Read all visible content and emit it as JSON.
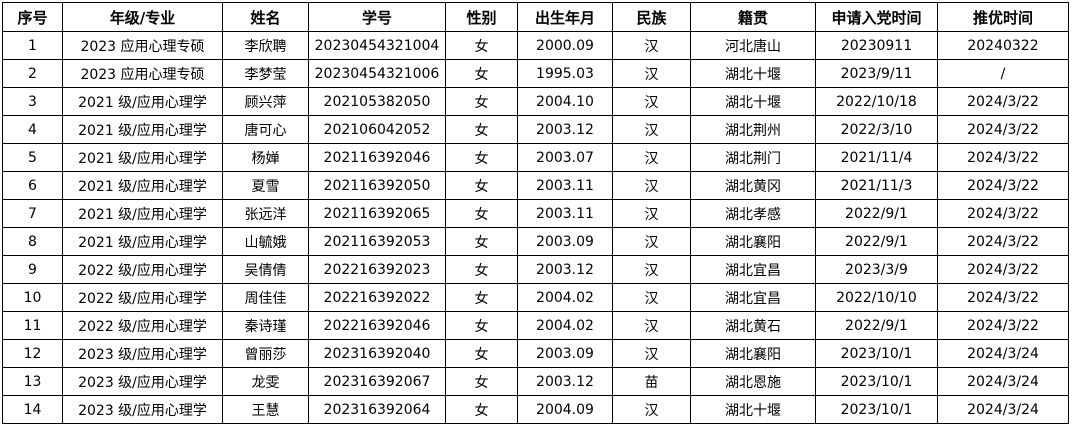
{
  "headers": [
    "序号",
    "年级/专业",
    "姓名",
    "学号",
    "性别",
    "出生年月",
    "民族",
    "籍贯",
    "申请入党时间",
    "推优时间"
  ],
  "rows": [
    [
      "1",
      "2023 应用心理专硕",
      "李欣聘",
      "20230454321004",
      "女",
      "2000.09",
      "汉",
      "河北唐山",
      "20230911",
      "20240322"
    ],
    [
      "2",
      "2023 应用心理专硕",
      "李梦莹",
      "20230454321006",
      "女",
      "1995.03",
      "汉",
      "湖北十堰",
      "2023/9/11",
      "/"
    ],
    [
      "3",
      "2021 级/应用心理学",
      "顾兴萍",
      "202105382050",
      "女",
      "2004.10",
      "汉",
      "湖北十堰",
      "2022/10/18",
      "2024/3/22"
    ],
    [
      "4",
      "2021 级/应用心理学",
      "唐可心",
      "202106042052",
      "女",
      "2003.12",
      "汉",
      "湖北荆州",
      "2022/3/10",
      "2024/3/22"
    ],
    [
      "5",
      "2021 级/应用心理学",
      "杨婵",
      "202116392046",
      "女",
      "2003.07",
      "汉",
      "湖北荆门",
      "2021/11/4",
      "2024/3/22"
    ],
    [
      "6",
      "2021 级/应用心理学",
      "夏雪",
      "202116392050",
      "女",
      "2003.11",
      "汉",
      "湖北黄冈",
      "2021/11/3",
      "2024/3/22"
    ],
    [
      "7",
      "2021 级/应用心理学",
      "张远洋",
      "202116392065",
      "女",
      "2003.11",
      "汉",
      "湖北孝感",
      "2022/9/1",
      "2024/3/22"
    ],
    [
      "8",
      "2021 级/应用心理学",
      "山毓娥",
      "202116392053",
      "女",
      "2003.09",
      "汉",
      "湖北襄阳",
      "2022/9/1",
      "2024/3/22"
    ],
    [
      "9",
      "2022 级/应用心理学",
      "吴倩倩",
      "202216392023",
      "女",
      "2003.12",
      "汉",
      "湖北宜昌",
      "2023/3/9",
      "2024/3/22"
    ],
    [
      "10",
      "2022 级/应用心理学",
      "周佳佳",
      "202216392022",
      "女",
      "2004.02",
      "汉",
      "湖北宜昌",
      "2022/10/10",
      "2024/3/22"
    ],
    [
      "11",
      "2022 级/应用心理学",
      "秦诗瑾",
      "202216392046",
      "女",
      "2004.02",
      "汉",
      "湖北黄石",
      "2022/9/1",
      "2024/3/22"
    ],
    [
      "12",
      "2023 级/应用心理学",
      "曾丽莎",
      "202316392040",
      "女",
      "2003.09",
      "汉",
      "湖北襄阳",
      "2023/10/1",
      "2024/3/24"
    ],
    [
      "13",
      "2023 级/应用心理学",
      "龙雯",
      "202316392067",
      "女",
      "2003.12",
      "苗",
      "湖北恩施",
      "2023/10/1",
      "2024/3/24"
    ],
    [
      "14",
      "2023 级/应用心理学",
      "王慧",
      "202316392064",
      "女",
      "2004.09",
      "汉",
      "湖北十堰",
      "2023/10/1",
      "2024/3/24"
    ]
  ]
}
